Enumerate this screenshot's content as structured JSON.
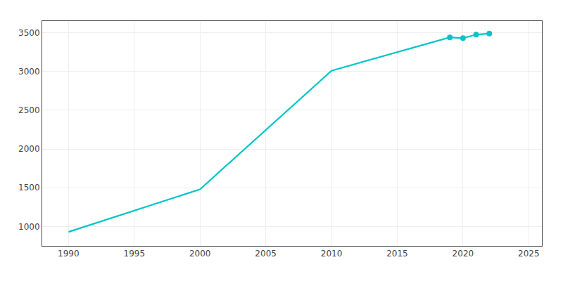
{
  "chart_data": {
    "type": "line",
    "x": [
      1990,
      2000,
      2010,
      2019,
      2020,
      2021,
      2022
    ],
    "series": [
      {
        "type": "line",
        "color": "#00C5C8",
        "values": [
          930,
          1480,
          3010,
          3440,
          3430,
          3475,
          3490
        ]
      },
      {
        "type": "scatter",
        "marker": "circle",
        "color": "#00C5C8",
        "x": [
          2019,
          2020,
          2021,
          2022
        ],
        "values": [
          3440,
          3430,
          3475,
          3490
        ]
      }
    ],
    "xlim": [
      1988,
      2026
    ],
    "ylim": [
      750,
      3650
    ],
    "xticks": [
      1990,
      1995,
      2000,
      2005,
      2010,
      2015,
      2020,
      2025
    ],
    "yticks": [
      1000,
      1500,
      2000,
      2500,
      3000,
      3500
    ],
    "grid": true
  }
}
